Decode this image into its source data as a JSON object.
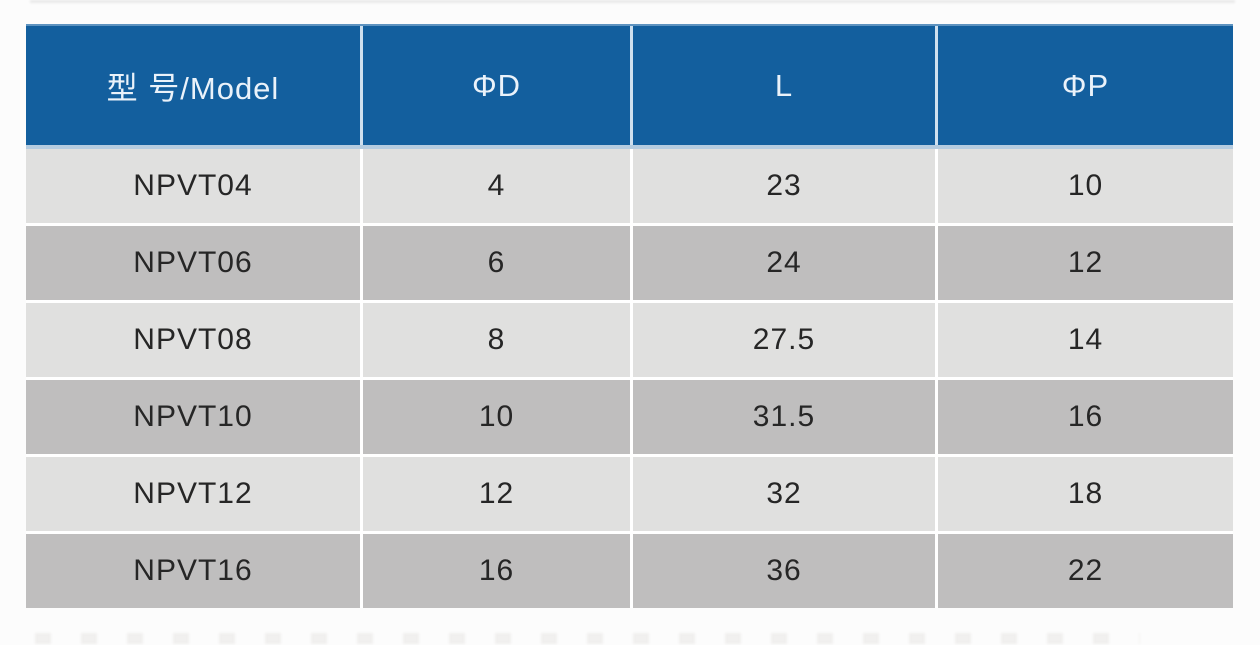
{
  "table": {
    "columns": [
      "型 号/Model",
      "ΦD",
      "L",
      "ΦP"
    ],
    "rows": [
      [
        "NPVT04",
        "4",
        "23",
        "10"
      ],
      [
        "NPVT06",
        "6",
        "24",
        "12"
      ],
      [
        "NPVT08",
        "8",
        "27.5",
        "14"
      ],
      [
        "NPVT10",
        "10",
        "31.5",
        "16"
      ],
      [
        "NPVT12",
        "12",
        "32",
        "18"
      ],
      [
        "NPVT16",
        "16",
        "36",
        "22"
      ]
    ]
  },
  "colors": {
    "page_bg": "#fcfcfc",
    "header_bg": "#135f9e",
    "header_text": "#eaf2fa",
    "header_divider": "#cfe0ef",
    "header_separator": "#b5cce0",
    "row_light": "#e0e0df",
    "row_dark": "#bfbebe",
    "divider": "#ffffff",
    "body_text": "#262626"
  }
}
